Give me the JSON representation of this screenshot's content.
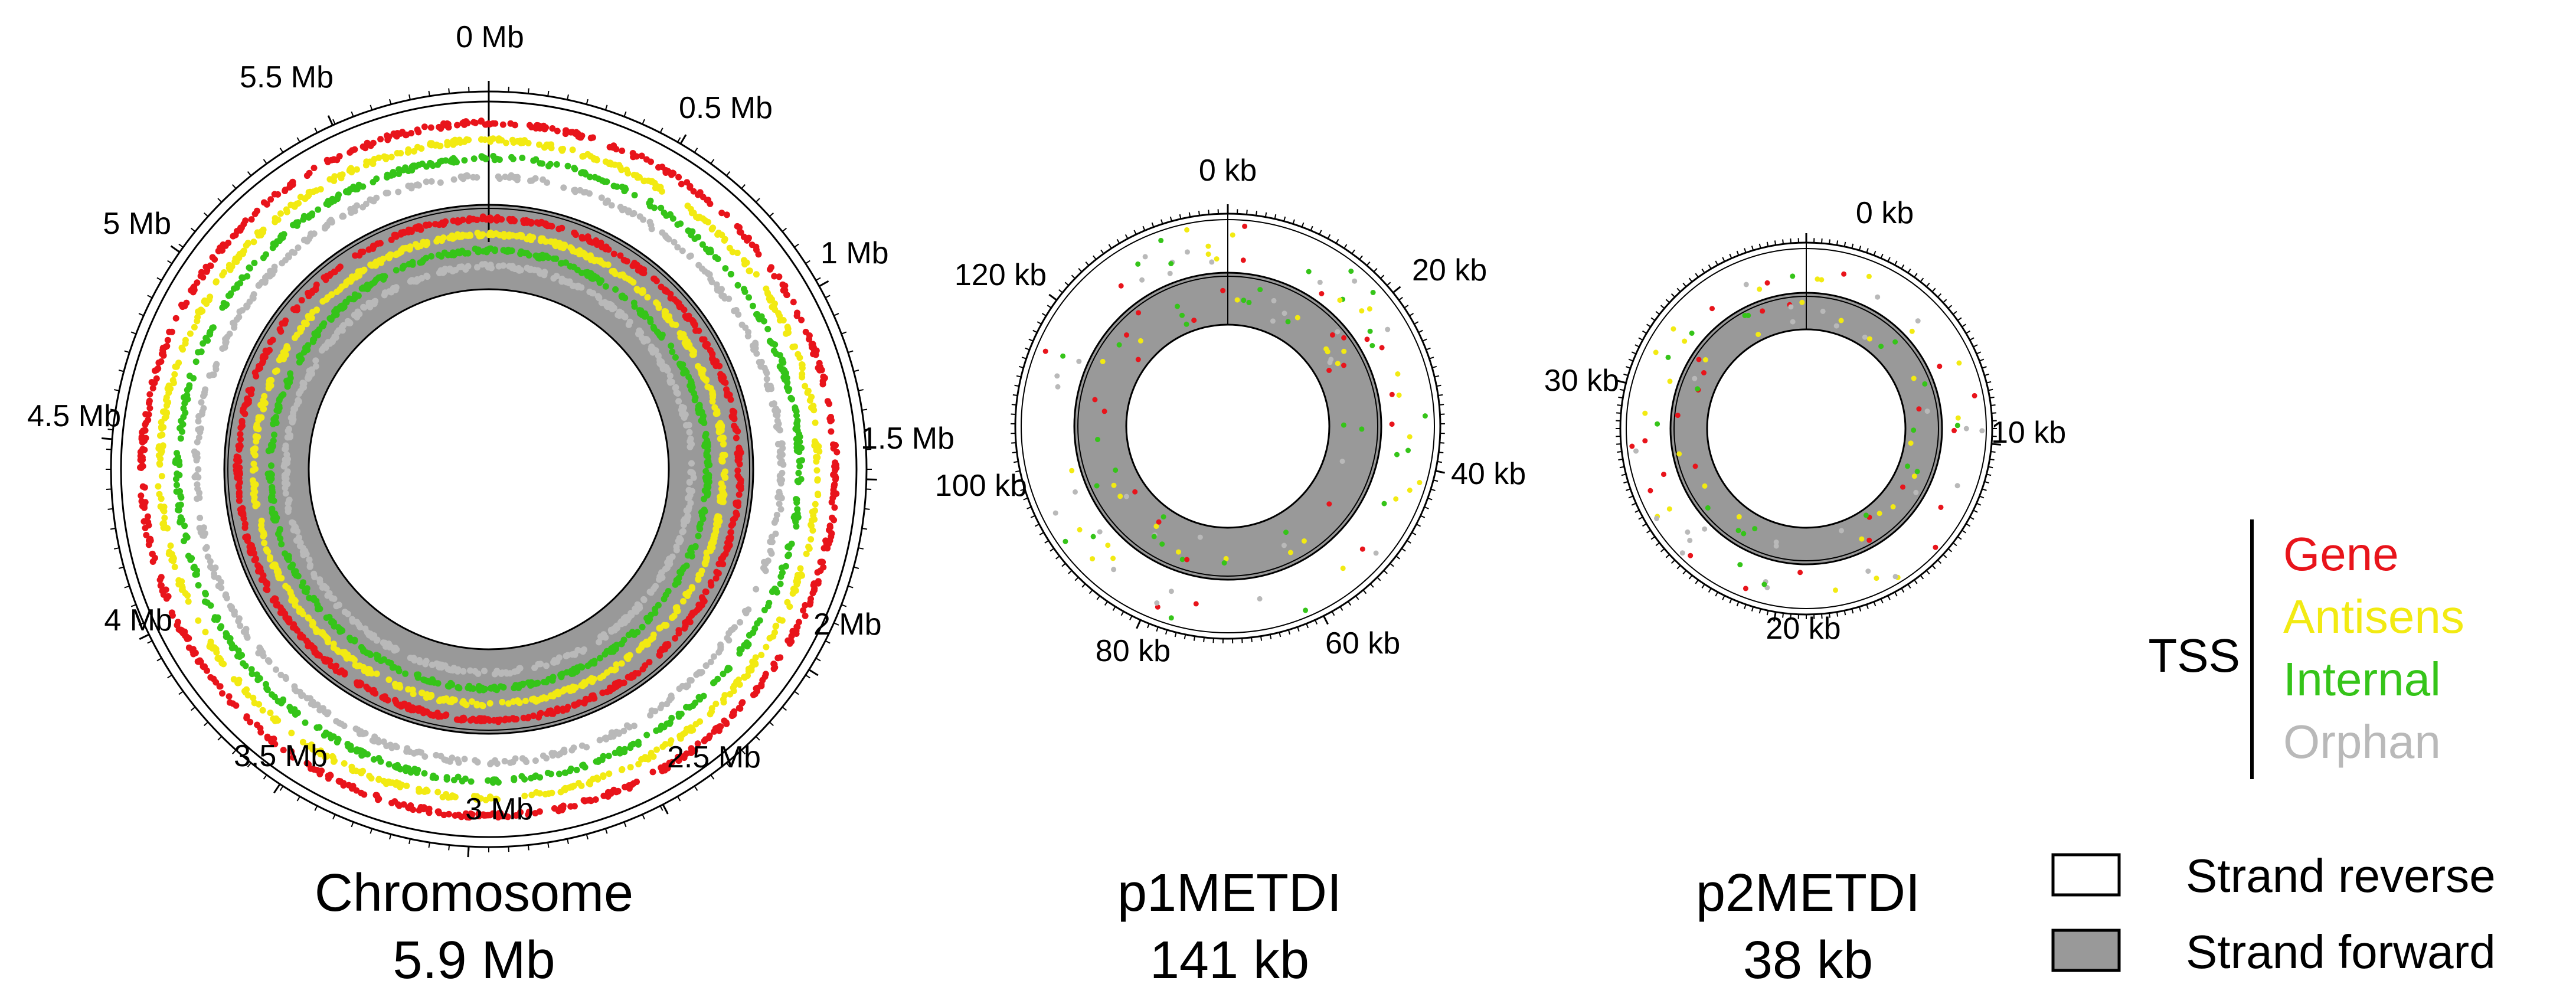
{
  "colors": {
    "gene": "#e8141b",
    "antisense": "#f2ea12",
    "internal": "#35c419",
    "orphan": "#b9b9b9",
    "strand_forward": "#999999",
    "strand_reverse": "#ffffff"
  },
  "maps": [
    {
      "id": "chromosome",
      "name": "Chromosome",
      "size_label": "5.9 Mb",
      "length": 5.9,
      "unit": "Mb",
      "ticks": [
        {
          "label": "0 Mb",
          "value": 0
        },
        {
          "label": "0.5 Mb",
          "value": 0.5
        },
        {
          "label": "1 Mb",
          "value": 1
        },
        {
          "label": "1.5 Mb",
          "value": 1.5
        },
        {
          "label": "2 Mb",
          "value": 2
        },
        {
          "label": "2.5 Mb",
          "value": 2.5
        },
        {
          "label": "3 Mb",
          "value": 3
        },
        {
          "label": "3.5 Mb",
          "value": 3.5
        },
        {
          "label": "4 Mb",
          "value": 4
        },
        {
          "label": "4.5 Mb",
          "value": 4.5
        },
        {
          "label": "5 Mb",
          "value": 5
        },
        {
          "label": "5.5 Mb",
          "value": 5.5
        }
      ]
    },
    {
      "id": "p1metdi",
      "name": "p1METDI",
      "size_label": "141 kb",
      "length": 141,
      "unit": "kb",
      "ticks": [
        {
          "label": "0 kb",
          "value": 0
        },
        {
          "label": "20 kb",
          "value": 20
        },
        {
          "label": "40 kb",
          "value": 40
        },
        {
          "label": "60 kb",
          "value": 60
        },
        {
          "label": "80 kb",
          "value": 80
        },
        {
          "label": "100 kb",
          "value": 100
        },
        {
          "label": "120 kb",
          "value": 120
        }
      ]
    },
    {
      "id": "p2metdi",
      "name": "p2METDI",
      "size_label": "38 kb",
      "length": 38,
      "unit": "kb",
      "ticks": [
        {
          "label": "0 kb",
          "value": 0
        },
        {
          "label": "10 kb",
          "value": 10
        },
        {
          "label": "20 kb",
          "value": 20
        },
        {
          "label": "30 kb",
          "value": 30
        }
      ]
    }
  ],
  "legend": {
    "tss_title": "TSS",
    "tss_classes": [
      {
        "label": "Gene",
        "key": "gene"
      },
      {
        "label": "Antisens",
        "key": "antisense"
      },
      {
        "label": "Internal",
        "key": "internal"
      },
      {
        "label": "Orphan",
        "key": "orphan"
      }
    ],
    "strands": [
      {
        "label": "Strand reverse",
        "key": "strand_reverse"
      },
      {
        "label": "Strand forward",
        "key": "strand_forward"
      }
    ]
  }
}
